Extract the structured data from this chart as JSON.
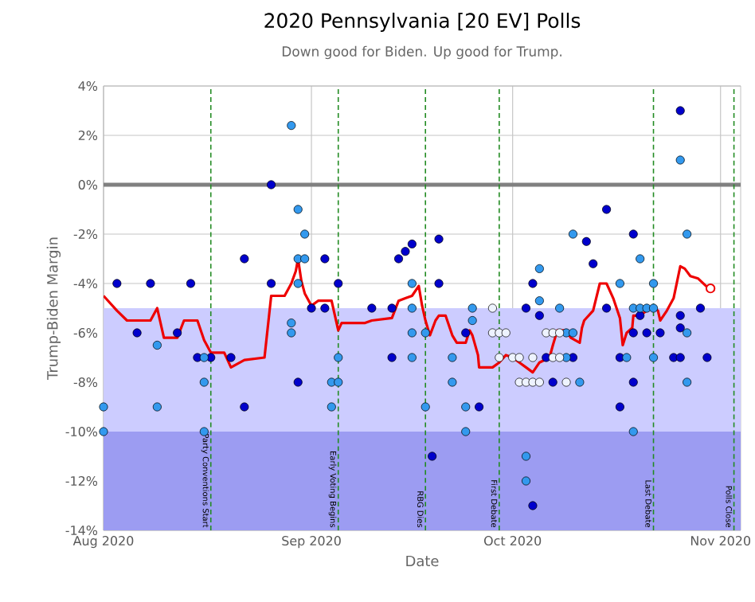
{
  "chart_data": {
    "type": "scatter",
    "title": "2020 Pennsylvania [20 EV] Polls",
    "subtitle": "Down good for Biden. Up good for Trump.",
    "xlabel": "Date",
    "ylabel": "Trump-Biden Margin",
    "xlim": [
      "2020-08-01",
      "2020-11-04"
    ],
    "ylim": [
      -14,
      4
    ],
    "xticks": [
      {
        "value": "2020-08-01",
        "label": "Aug 2020"
      },
      {
        "value": "2020-09-01",
        "label": "Sep 2020"
      },
      {
        "value": "2020-10-01",
        "label": "Oct 2020"
      },
      {
        "value": "2020-11-01",
        "label": "Nov 2020"
      }
    ],
    "yticks": [
      {
        "value": 4,
        "label": "4%"
      },
      {
        "value": 2,
        "label": "2%"
      },
      {
        "value": 0,
        "label": "0%"
      },
      {
        "value": -2,
        "label": "-2%"
      },
      {
        "value": -4,
        "label": "-4%"
      },
      {
        "value": -6,
        "label": "-6%"
      },
      {
        "value": -8,
        "label": "-8%"
      },
      {
        "value": -10,
        "label": "-10%"
      },
      {
        "value": -12,
        "label": "-12%"
      },
      {
        "value": -14,
        "label": "-14%"
      }
    ],
    "grid": true,
    "bands": [
      {
        "axis": "y",
        "from": -10,
        "to": -5,
        "color": "#ccccff"
      },
      {
        "axis": "y",
        "from": -14,
        "to": -10,
        "color": "#9c9cf2"
      }
    ],
    "ref_lines": [
      {
        "axis": "y",
        "value": 0,
        "color": "#808080",
        "line_style": "solid"
      },
      {
        "axis": "x",
        "value": "2020-08-17",
        "label": "Party Conventions Start",
        "color": "#228b22",
        "line_style": "dashed"
      },
      {
        "axis": "x",
        "value": "2020-09-05",
        "label": "Early Voting Begins",
        "color": "#228b22",
        "line_style": "dashed"
      },
      {
        "axis": "x",
        "value": "2020-09-18",
        "label": "RBG Dies",
        "color": "#228b22",
        "line_style": "dashed"
      },
      {
        "axis": "x",
        "value": "2020-09-29",
        "label": "First Debate",
        "color": "#228b22",
        "line_style": "dashed"
      },
      {
        "axis": "x",
        "value": "2020-10-22",
        "label": "Last Debate",
        "color": "#228b22",
        "line_style": "dashed"
      },
      {
        "axis": "x",
        "value": "2020-11-03",
        "label": "Polls Close",
        "color": "#228b22",
        "line_style": "dashed"
      }
    ],
    "series": [
      {
        "marker": "circle",
        "color": "#0000cc",
        "x": [
          "2020-08-03",
          "2020-08-08",
          "2020-08-14",
          "2020-08-06",
          "2020-08-12",
          "2020-08-22",
          "2020-08-26",
          "2020-08-26",
          "2020-09-03",
          "2020-09-05",
          "2020-09-01",
          "2020-09-03",
          "2020-09-10",
          "2020-08-15",
          "2020-08-17",
          "2020-08-20",
          "2020-08-22",
          "2020-08-30",
          "2020-10-26",
          "2020-10-15",
          "2020-10-12",
          "2020-10-19",
          "2020-10-13",
          "2020-10-04",
          "2020-09-14",
          "2020-09-15",
          "2020-09-16",
          "2020-09-20",
          "2020-09-20",
          "2020-09-13",
          "2020-10-03",
          "2020-10-05",
          "2020-10-15",
          "2020-10-29",
          "2020-10-26",
          "2020-10-20",
          "2020-09-24",
          "2020-10-19",
          "2020-10-21",
          "2020-10-23",
          "2020-10-26",
          "2020-09-13",
          "2020-10-06",
          "2020-10-10",
          "2020-10-17",
          "2020-10-25",
          "2020-10-26",
          "2020-10-30",
          "2020-10-07",
          "2020-10-19",
          "2020-09-26",
          "2020-10-17",
          "2020-09-19",
          "2020-10-04"
        ],
        "values": [
          -4,
          -4,
          -4,
          -6,
          -6,
          -3,
          -4,
          0,
          -3,
          -4,
          -5,
          -5,
          -5,
          -7,
          -7,
          -7,
          -9,
          -8,
          3,
          -1,
          -2.3,
          -2,
          -3.2,
          -4,
          -3,
          -2.7,
          -2.4,
          -2.2,
          -4,
          -5,
          -5,
          -5.3,
          -5,
          -5,
          -5.3,
          -5.3,
          -6,
          -6,
          -6,
          -6,
          -5.8,
          -7,
          -7,
          -7,
          -7,
          -7,
          -7,
          -7,
          -8,
          -8,
          -9,
          -9,
          -11,
          -13
        ]
      },
      {
        "marker": "circle",
        "color": "#3399ee",
        "x": [
          "2020-08-09",
          "2020-08-29",
          "2020-08-30",
          "2020-08-31",
          "2020-08-30",
          "2020-08-31",
          "2020-08-30",
          "2020-08-29",
          "2020-08-29",
          "2020-08-01",
          "2020-08-01",
          "2020-08-09",
          "2020-08-16",
          "2020-08-16",
          "2020-08-16",
          "2020-09-04",
          "2020-09-05",
          "2020-09-05",
          "2020-09-04",
          "2020-10-26",
          "2020-10-10",
          "2020-10-27",
          "2020-10-20",
          "2020-10-05",
          "2020-10-05",
          "2020-09-16",
          "2020-09-16",
          "2020-09-25",
          "2020-09-25",
          "2020-10-08",
          "2020-10-17",
          "2020-10-22",
          "2020-10-19",
          "2020-10-20",
          "2020-10-21",
          "2020-10-22",
          "2020-09-16",
          "2020-09-18",
          "2020-10-09",
          "2020-10-10",
          "2020-10-27",
          "2020-09-16",
          "2020-09-22",
          "2020-10-09",
          "2020-10-18",
          "2020-10-22",
          "2020-09-22",
          "2020-10-11",
          "2020-10-27",
          "2020-09-18",
          "2020-09-24",
          "2020-09-24",
          "2020-10-19",
          "2020-10-03",
          "2020-10-03"
        ],
        "values": [
          -6.5,
          2.4,
          -1,
          -2,
          -3,
          -3,
          -4,
          -5.6,
          -6,
          -9,
          -10,
          -9,
          -7,
          -8,
          -10,
          -8,
          -8,
          -7,
          -9,
          1,
          -2,
          -2,
          -3,
          -3.4,
          -4.7,
          -4,
          -5,
          -5,
          -5.5,
          -5,
          -4,
          -4,
          -5,
          -5,
          -5,
          -5,
          -6,
          -6,
          -6,
          -6,
          -6,
          -7,
          -7,
          -7,
          -7,
          -7,
          -8,
          -8,
          -8,
          -9,
          -9,
          -10,
          -10,
          -11,
          -12
        ]
      },
      {
        "marker": "circle",
        "color": "#eef3ff",
        "x": [
          "2020-09-28",
          "2020-09-28",
          "2020-09-29",
          "2020-09-30",
          "2020-10-06",
          "2020-10-07",
          "2020-10-08",
          "2020-09-29",
          "2020-10-01",
          "2020-10-02",
          "2020-10-04",
          "2020-10-07",
          "2020-10-08",
          "2020-10-02",
          "2020-10-03",
          "2020-10-04",
          "2020-10-05",
          "2020-10-09"
        ],
        "values": [
          -5,
          -6,
          -6,
          -6,
          -6,
          -6,
          -6,
          -7,
          -7,
          -7,
          -7,
          -7,
          -7,
          -8,
          -8,
          -8,
          -8,
          -8
        ]
      },
      {
        "type": "line",
        "color": "#ee0000",
        "line_style": "solid",
        "marker": "none",
        "x": [
          "2020-08-01",
          "2020-08-02",
          "2020-08-03",
          "2020-08-04T12:00",
          "2020-08-08",
          "2020-08-09",
          "2020-08-10",
          "2020-08-12",
          "2020-08-13",
          "2020-08-15",
          "2020-08-16",
          "2020-08-17",
          "2020-08-19",
          "2020-08-20",
          "2020-08-22",
          "2020-08-25",
          "2020-08-26",
          "2020-08-28",
          "2020-08-29",
          "2020-08-29T16:00",
          "2020-08-30",
          "2020-08-30T12:00",
          "2020-08-31",
          "2020-09-01",
          "2020-09-02",
          "2020-09-04",
          "2020-09-05",
          "2020-09-05T12:00",
          "2020-09-09",
          "2020-09-10",
          "2020-09-13",
          "2020-09-14",
          "2020-09-15",
          "2020-09-16",
          "2020-09-17",
          "2020-09-17T12:00",
          "2020-09-18",
          "2020-09-18T16:00",
          "2020-09-19T12:00",
          "2020-09-20",
          "2020-09-21",
          "2020-09-22",
          "2020-09-22T16:00",
          "2020-09-24",
          "2020-09-24T14:00",
          "2020-09-25",
          "2020-09-25T20:00",
          "2020-09-26",
          "2020-09-28",
          "2020-09-29",
          "2020-09-30",
          "2020-10-01",
          "2020-10-02",
          "2020-10-03",
          "2020-10-04",
          "2020-10-04T12:00",
          "2020-10-05",
          "2020-10-06T12:00",
          "2020-10-07",
          "2020-10-07T16:00",
          "2020-10-09",
          "2020-10-09T16:00",
          "2020-10-11",
          "2020-10-11T08:00",
          "2020-10-11T16:00",
          "2020-10-13",
          "2020-10-14",
          "2020-10-15",
          "2020-10-16",
          "2020-10-17",
          "2020-10-17T10:00",
          "2020-10-18",
          "2020-10-18T20:00",
          "2020-10-19",
          "2020-10-20",
          "2020-10-21T12:00",
          "2020-10-22T16:00",
          "2020-10-23",
          "2020-10-24",
          "2020-10-25",
          "2020-10-26",
          "2020-10-26T16:00",
          "2020-10-27T12:00",
          "2020-10-28T16:00",
          "2020-10-29T20:00",
          "2020-10-30T12:00"
        ],
        "values": [
          -4.5,
          -4.8,
          -5.1,
          -5.5,
          -5.5,
          -5,
          -6.2,
          -6.2,
          -5.5,
          -5.5,
          -6.3,
          -6.8,
          -6.8,
          -7.4,
          -7.1,
          -7,
          -4.5,
          -4.5,
          -4,
          -3.5,
          -3,
          -3.9,
          -4.4,
          -4.9,
          -4.7,
          -4.7,
          -5.9,
          -5.6,
          -5.6,
          -5.5,
          -5.4,
          -4.7,
          -4.6,
          -4.5,
          -4.1,
          -4.9,
          -5.5,
          -6.1,
          -5.5,
          -5.3,
          -5.3,
          -6.1,
          -6.4,
          -6.4,
          -5.9,
          -6.1,
          -6.9,
          -7.4,
          -7.4,
          -7.2,
          -6.9,
          -7,
          -7.2,
          -7.4,
          -7.6,
          -7.4,
          -7.2,
          -7,
          -6.5,
          -5.9,
          -5.9,
          -6.2,
          -6.4,
          -5.8,
          -5.5,
          -5.1,
          -4,
          -4,
          -4.6,
          -5.4,
          -6.5,
          -6,
          -5.8,
          -5.3,
          -5.3,
          -5,
          -5.1,
          -5.5,
          -5.1,
          -4.6,
          -3.3,
          -3.4,
          -3.7,
          -3.8,
          -4.1,
          -4.2
        ]
      },
      {
        "marker": "circle",
        "color": "#ee0000",
        "x": [
          "2020-10-30T12:00"
        ],
        "values": [
          -4.2
        ]
      }
    ]
  }
}
